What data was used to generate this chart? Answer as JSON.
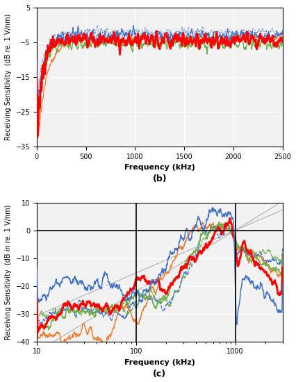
{
  "fig_width": 4.26,
  "fig_height": 5.5,
  "dpi": 100,
  "top_plot": {
    "label": "(b)",
    "xlabel": "Frequency (kHz)",
    "ylabel": "Receiving Sensitivity  (dB re. 1 V/nm)",
    "xlim": [
      0,
      2500
    ],
    "ylim": [
      -35,
      5
    ],
    "yticks": [
      -35,
      -25,
      -15,
      -5,
      5
    ],
    "xticks": [
      0,
      500,
      1000,
      1500,
      2000,
      2500
    ],
    "bg_color": "#f2f2f2"
  },
  "bottom_plot": {
    "label": "(c)",
    "xlabel": "Frequency (kHz)",
    "ylabel": "Receiving Sensitivity  (dB in re. 1 V/nm)",
    "xlim": [
      10,
      3000
    ],
    "ylim": [
      -40,
      10
    ],
    "yticks": [
      -40,
      -30,
      -20,
      -10,
      0,
      10
    ],
    "vlines": [
      100,
      1000
    ],
    "hline": 0,
    "bg_color": "#f2f2f2"
  },
  "colors": {
    "blue": "#4472C4",
    "red": "#FF0000",
    "green": "#70AD47",
    "orange": "#ED7D31",
    "gray": "#A0A0A0"
  }
}
